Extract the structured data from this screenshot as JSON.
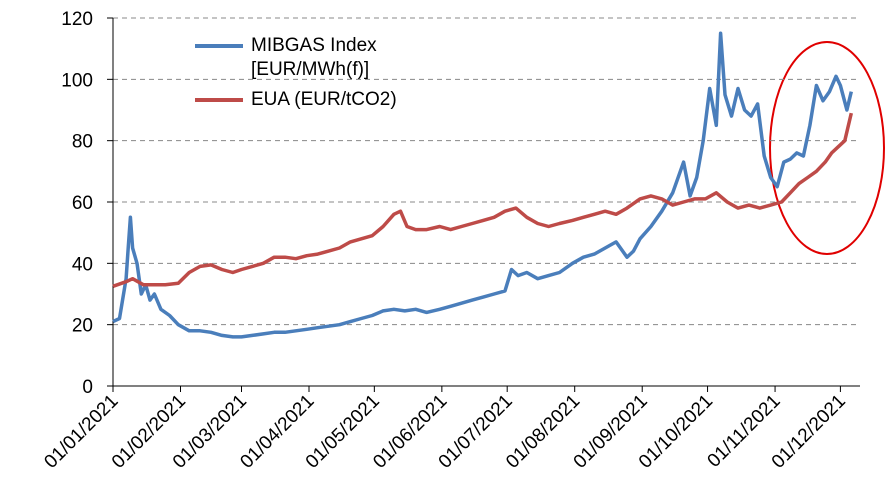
{
  "chart_data": {
    "type": "line",
    "xlim": [
      "01/01/2021",
      "10/12/2021"
    ],
    "xticks": [
      "01/01/2021",
      "01/02/2021",
      "01/03/2021",
      "01/04/2021",
      "01/05/2021",
      "01/06/2021",
      "01/07/2021",
      "01/08/2021",
      "01/09/2021",
      "01/10/2021",
      "01/11/2021",
      "01/12/2021"
    ],
    "ylim": [
      0,
      120
    ],
    "yticks": [
      0,
      20,
      40,
      60,
      80,
      100,
      120
    ],
    "grid": true,
    "legend": "top-left",
    "series": [
      {
        "name": "MIBGAS Index [EUR/MWh(f)]",
        "color": "#4a7ebb",
        "x": [
          "01/01/2021",
          "04/01/2021",
          "07/01/2021",
          "08/01/2021",
          "09/01/2021",
          "10/01/2021",
          "12/01/2021",
          "14/01/2021",
          "16/01/2021",
          "18/01/2021",
          "20/01/2021",
          "23/01/2021",
          "27/01/2021",
          "31/01/2021",
          "05/02/2021",
          "10/02/2021",
          "15/02/2021",
          "20/02/2021",
          "25/02/2021",
          "01/03/2021",
          "06/03/2021",
          "11/03/2021",
          "16/03/2021",
          "21/03/2021",
          "26/03/2021",
          "31/03/2021",
          "05/04/2021",
          "10/04/2021",
          "15/04/2021",
          "20/04/2021",
          "25/04/2021",
          "30/04/2021",
          "05/05/2021",
          "10/05/2021",
          "15/05/2021",
          "20/05/2021",
          "25/05/2021",
          "31/05/2021",
          "05/06/2021",
          "10/06/2021",
          "15/06/2021",
          "20/06/2021",
          "25/06/2021",
          "30/06/2021",
          "03/07/2021",
          "06/07/2021",
          "10/07/2021",
          "15/07/2021",
          "20/07/2021",
          "25/07/2021",
          "31/07/2021",
          "05/08/2021",
          "10/08/2021",
          "15/08/2021",
          "20/08/2021",
          "25/08/2021",
          "28/08/2021",
          "31/08/2021",
          "05/09/2021",
          "10/09/2021",
          "15/09/2021",
          "20/09/2021",
          "23/09/2021",
          "26/09/2021",
          "29/09/2021",
          "02/10/2021",
          "05/10/2021",
          "07/10/2021",
          "09/10/2021",
          "12/10/2021",
          "15/10/2021",
          "18/10/2021",
          "21/10/2021",
          "24/10/2021",
          "27/10/2021",
          "30/10/2021",
          "02/11/2021",
          "05/11/2021",
          "08/11/2021",
          "11/11/2021",
          "14/11/2021",
          "17/11/2021",
          "20/11/2021",
          "23/11/2021",
          "26/11/2021",
          "29/11/2021",
          "01/12/2021",
          "04/12/2021",
          "06/12/2021"
        ],
        "values": [
          21,
          22,
          35,
          45,
          55,
          45,
          40,
          30,
          33,
          28,
          30,
          25,
          23,
          20,
          18,
          18,
          17.5,
          16.5,
          16,
          16,
          16.5,
          17,
          17.5,
          17.5,
          18,
          18.5,
          19,
          19.5,
          20,
          21,
          22,
          23,
          24.5,
          25,
          24.5,
          25,
          24,
          25,
          26,
          27,
          28,
          29,
          30,
          31,
          38,
          36,
          37,
          35,
          36,
          37,
          40,
          42,
          43,
          45,
          47,
          42,
          44,
          48,
          52,
          57,
          63,
          73,
          62,
          68,
          80,
          97,
          85,
          115,
          95,
          88,
          97,
          90,
          88,
          92,
          75,
          68,
          65,
          73,
          74,
          76,
          75,
          85,
          98,
          93,
          96,
          101,
          98,
          90,
          96
        ]
      },
      {
        "name": "EUA (EUR/tCO2)",
        "color": "#be4b48",
        "x": [
          "01/01/2021",
          "07/01/2021",
          "10/01/2021",
          "15/01/2021",
          "20/01/2021",
          "25/01/2021",
          "31/01/2021",
          "05/02/2021",
          "10/02/2021",
          "15/02/2021",
          "20/02/2021",
          "25/02/2021",
          "01/03/2021",
          "06/03/2021",
          "11/03/2021",
          "16/03/2021",
          "21/03/2021",
          "26/03/2021",
          "31/03/2021",
          "05/04/2021",
          "10/04/2021",
          "15/04/2021",
          "20/04/2021",
          "25/04/2021",
          "30/04/2021",
          "05/05/2021",
          "10/05/2021",
          "13/05/2021",
          "16/05/2021",
          "20/05/2021",
          "25/05/2021",
          "31/05/2021",
          "05/06/2021",
          "10/06/2021",
          "15/06/2021",
          "20/06/2021",
          "25/06/2021",
          "30/06/2021",
          "05/07/2021",
          "10/07/2021",
          "15/07/2021",
          "20/07/2021",
          "25/07/2021",
          "31/07/2021",
          "05/08/2021",
          "10/08/2021",
          "15/08/2021",
          "20/08/2021",
          "25/08/2021",
          "31/08/2021",
          "05/09/2021",
          "10/09/2021",
          "15/09/2021",
          "20/09/2021",
          "25/09/2021",
          "30/09/2021",
          "05/10/2021",
          "10/10/2021",
          "15/10/2021",
          "20/10/2021",
          "25/10/2021",
          "30/10/2021",
          "04/11/2021",
          "08/11/2021",
          "12/11/2021",
          "16/11/2021",
          "20/11/2021",
          "24/11/2021",
          "27/11/2021",
          "30/11/2021",
          "03/12/2021",
          "06/12/2021"
        ],
        "values": [
          32.5,
          34,
          35,
          33,
          33,
          33,
          33.5,
          37,
          39,
          39.5,
          38,
          37,
          38,
          39,
          40,
          42,
          42,
          41.5,
          42.5,
          43,
          44,
          45,
          47,
          48,
          49,
          52,
          56,
          57,
          52,
          51,
          51,
          52,
          51,
          52,
          53,
          54,
          55,
          57,
          58,
          55,
          53,
          52,
          53,
          54,
          55,
          56,
          57,
          56,
          58,
          61,
          62,
          61,
          59,
          60,
          61,
          61,
          63,
          60,
          58,
          59,
          58,
          59,
          60,
          63,
          66,
          68,
          70,
          73,
          76,
          78,
          80,
          89
        ]
      }
    ]
  }
}
